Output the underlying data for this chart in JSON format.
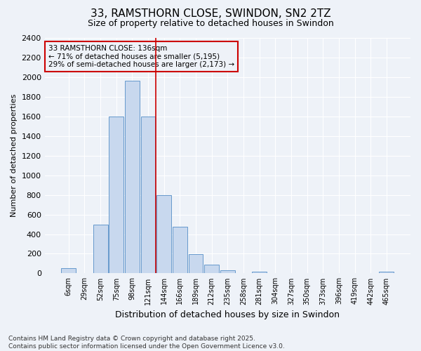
{
  "title1": "33, RAMSTHORN CLOSE, SWINDON, SN2 2TZ",
  "title2": "Size of property relative to detached houses in Swindon",
  "xlabel": "Distribution of detached houses by size in Swindon",
  "ylabel": "Number of detached properties",
  "categories": [
    "6sqm",
    "29sqm",
    "52sqm",
    "75sqm",
    "98sqm",
    "121sqm",
    "144sqm",
    "166sqm",
    "189sqm",
    "212sqm",
    "235sqm",
    "258sqm",
    "281sqm",
    "304sqm",
    "327sqm",
    "350sqm",
    "373sqm",
    "396sqm",
    "419sqm",
    "442sqm",
    "465sqm"
  ],
  "values": [
    50,
    0,
    500,
    1600,
    1960,
    1600,
    800,
    475,
    195,
    90,
    35,
    0,
    15,
    0,
    0,
    0,
    0,
    0,
    0,
    0,
    15
  ],
  "bar_color": "#c8d8ee",
  "bar_edge_color": "#6699cc",
  "ylim": [
    0,
    2400
  ],
  "yticks": [
    0,
    200,
    400,
    600,
    800,
    1000,
    1200,
    1400,
    1600,
    1800,
    2000,
    2200,
    2400
  ],
  "vline_x_index": 6,
  "vline_color": "#cc0000",
  "annotation_text": "33 RAMSTHORN CLOSE: 136sqm\n← 71% of detached houses are smaller (5,195)\n29% of semi-detached houses are larger (2,173) →",
  "annotation_box_color": "#cc0000",
  "footnote": "Contains HM Land Registry data © Crown copyright and database right 2025.\nContains public sector information licensed under the Open Government Licence v3.0.",
  "bg_color": "#eef2f8",
  "grid_color": "#ffffff",
  "title1_fontsize": 11,
  "title2_fontsize": 9,
  "ylabel_fontsize": 8,
  "xlabel_fontsize": 9,
  "tick_fontsize": 8,
  "xtick_fontsize": 7,
  "annot_fontsize": 7.5,
  "footnote_fontsize": 6.5
}
